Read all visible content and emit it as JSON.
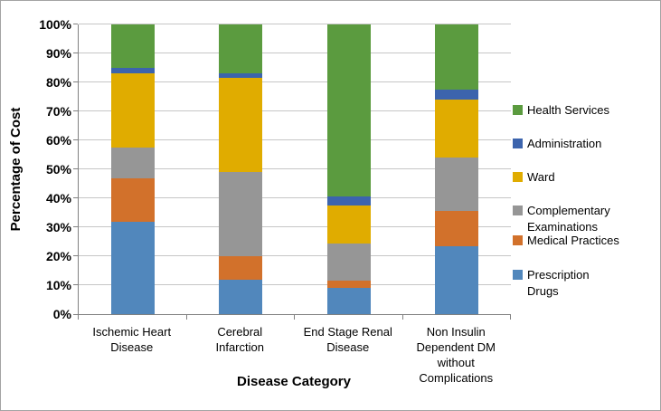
{
  "chart_data": {
    "type": "bar",
    "variant": "stacked-100-percent",
    "title": "",
    "xlabel": "Disease Category",
    "ylabel": "Percentage of Cost",
    "ylim": [
      0,
      100
    ],
    "ytick_labels": [
      "0%",
      "10%",
      "20%",
      "30%",
      "40%",
      "50%",
      "60%",
      "70%",
      "80%",
      "90%",
      "100%"
    ],
    "grid": "horizontal",
    "legend_position": "right",
    "categories": [
      "Ischemic Heart\nDisease",
      "Cerebral\nInfarction",
      "End Stage Renal\nDisease",
      "Non Insulin\nDependent DM\nwithout\nComplications"
    ],
    "series": [
      {
        "name": "Prescription Drugs",
        "color": "#5187BC",
        "values": [
          32.0,
          12.0,
          9.0,
          23.5
        ]
      },
      {
        "name": "Medical Practices",
        "color": "#D2712B",
        "values": [
          15.0,
          8.0,
          2.5,
          12.0
        ]
      },
      {
        "name": "Complementary Examinations",
        "color": "#969696",
        "values": [
          10.5,
          29.0,
          13.0,
          18.5
        ]
      },
      {
        "name": "Ward",
        "color": "#E0AC00",
        "values": [
          25.5,
          32.5,
          13.0,
          20.0
        ]
      },
      {
        "name": "Administration",
        "color": "#3C64AD",
        "values": [
          2.0,
          1.5,
          3.0,
          3.5
        ]
      },
      {
        "name": "Health Services",
        "color": "#5B9B3F",
        "values": [
          15.0,
          17.0,
          59.5,
          22.5
        ]
      }
    ],
    "legend": [
      {
        "label": "Health Services",
        "color": "#5B9B3F"
      },
      {
        "label": "Administration",
        "color": "#3C64AD"
      },
      {
        "label": "Ward",
        "color": "#E0AC00"
      },
      {
        "label": "Complementary\nExaminations",
        "color": "#969696"
      },
      {
        "label": "Medical Practices",
        "color": "#D2712B"
      },
      {
        "label": "Prescription\nDrugs",
        "color": "#5187BC"
      }
    ]
  }
}
